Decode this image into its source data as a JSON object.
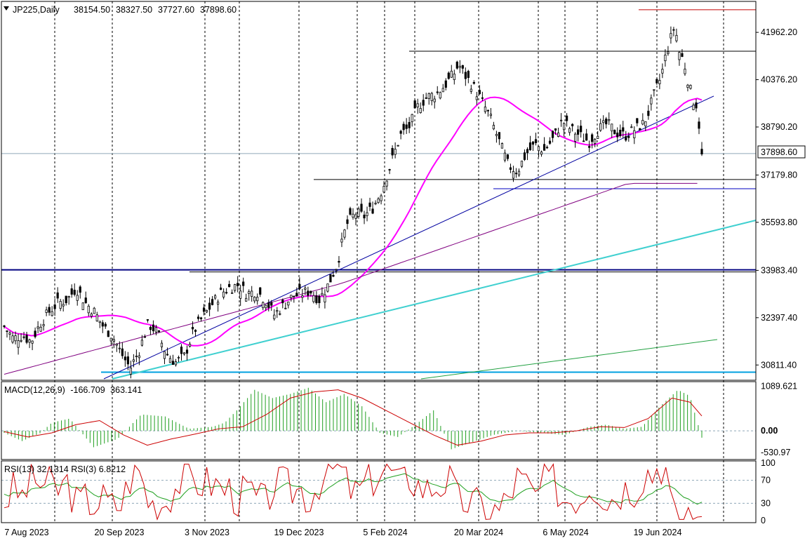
{
  "header": {
    "symbol": "JP225,Daily",
    "open": "38154.50",
    "high": "38327.50",
    "low": "37727.60",
    "close": "37898.60",
    "current_price_label": "37898.60"
  },
  "chart_data": [
    {
      "type": "candlestick",
      "title": "JP225,Daily",
      "x_tick_labels": [
        "7 Aug 2023",
        "20 Sep 2023",
        "3 Nov 2023",
        "19 Dec 2023",
        "5 Feb 2024",
        "20 Mar 2024",
        "6 May 2024",
        "19 Jun 2024"
      ],
      "y_tick_labels": [
        "41962.20",
        "40376.20",
        "38790.20",
        "37179.80",
        "35593.80",
        "33983.40",
        "32397.40",
        "30811.40"
      ],
      "ylim": [
        30300,
        43000
      ],
      "current_price": 37898.6,
      "candle_count": 250,
      "trend_points": [
        [
          0,
          32100
        ],
        [
          4,
          31700
        ],
        [
          8,
          31800
        ],
        [
          12,
          31600
        ],
        [
          16,
          32200
        ],
        [
          20,
          32600
        ],
        [
          24,
          32900
        ],
        [
          28,
          33000
        ],
        [
          32,
          33400
        ],
        [
          36,
          32900
        ],
        [
          40,
          32600
        ],
        [
          44,
          32100
        ],
        [
          48,
          31800
        ],
        [
          52,
          31200
        ],
        [
          56,
          30700
        ],
        [
          60,
          31300
        ],
        [
          64,
          32200
        ],
        [
          68,
          31900
        ],
        [
          72,
          31200
        ],
        [
          76,
          30900
        ],
        [
          80,
          31100
        ],
        [
          84,
          31900
        ],
        [
          88,
          32400
        ],
        [
          92,
          32800
        ],
        [
          96,
          33200
        ],
        [
          100,
          33400
        ],
        [
          104,
          33500
        ],
        [
          108,
          33200
        ],
        [
          112,
          33300
        ],
        [
          116,
          33000
        ],
        [
          120,
          32500
        ],
        [
          124,
          32800
        ],
        [
          128,
          33100
        ],
        [
          132,
          33200
        ],
        [
          136,
          33300
        ],
        [
          140,
          33000
        ],
        [
          144,
          33500
        ],
        [
          148,
          34200
        ],
        [
          152,
          35500
        ],
        [
          156,
          35900
        ],
        [
          160,
          35800
        ],
        [
          164,
          36100
        ],
        [
          168,
          36700
        ],
        [
          172,
          37600
        ],
        [
          176,
          38500
        ],
        [
          180,
          38800
        ],
        [
          184,
          39500
        ],
        [
          188,
          39800
        ],
        [
          192,
          39900
        ],
        [
          196,
          40200
        ],
        [
          200,
          40600
        ],
        [
          202,
          40900
        ],
        [
          204,
          40600
        ],
        [
          208,
          40200
        ],
        [
          212,
          39700
        ],
        [
          216,
          39100
        ],
        [
          220,
          38300
        ],
        [
          224,
          37500
        ],
        [
          228,
          37300
        ],
        [
          232,
          37900
        ],
        [
          236,
          38200
        ],
        [
          240,
          38000
        ],
        [
          244,
          38400
        ],
        [
          248,
          39000
        ],
        [
          252,
          38700
        ],
        [
          256,
          38500
        ],
        [
          260,
          38300
        ],
        [
          264,
          38700
        ],
        [
          268,
          38900
        ],
        [
          272,
          38600
        ],
        [
          276,
          38500
        ],
        [
          280,
          38700
        ],
        [
          284,
          38900
        ],
        [
          286,
          39200
        ],
        [
          288,
          39700
        ],
        [
          290,
          40100
        ],
        [
          292,
          40500
        ],
        [
          294,
          41200
        ],
        [
          296,
          41700
        ],
        [
          298,
          42200
        ],
        [
          300,
          41300
        ],
        [
          302,
          41000
        ],
        [
          304,
          40300
        ],
        [
          306,
          39700
        ],
        [
          308,
          39500
        ],
        [
          310,
          37800
        ]
      ],
      "moving_averages": [
        {
          "color": "#ff00ff",
          "width": 2
        },
        {
          "color": "#800080",
          "width": 1
        },
        {
          "color": "#40e0d0",
          "width": 2
        },
        {
          "color": "#20a040",
          "width": 1
        }
      ],
      "horizontal_levels": [
        {
          "value": 42720,
          "color": "#c00000"
        },
        {
          "value": 41330,
          "color": "#000000"
        },
        {
          "value": 37030,
          "color": "#000000"
        },
        {
          "value": 36720,
          "color": "#0000c0"
        },
        {
          "value": 34000,
          "color": "#000080"
        },
        {
          "value": 33930,
          "color": "#000000"
        },
        {
          "value": 30570,
          "color": "#00a0e0"
        }
      ],
      "colors": {
        "up": "#000000",
        "down": "#000000",
        "line": "#000000",
        "current_line": "#8fa8b8"
      }
    },
    {
      "type": "bar",
      "title": "MACD(12,26,9)",
      "main_value": "-166.709",
      "signal_value": "363.141",
      "y_tick_labels": [
        "1089.621",
        "0.00",
        "-530.97"
      ],
      "ylim": [
        -700,
        1200
      ],
      "histogram_color": "#22a022",
      "signal_color": "#cc0000",
      "histogram_points": [
        [
          0,
          -50
        ],
        [
          15,
          -250
        ],
        [
          30,
          -60
        ],
        [
          40,
          200
        ],
        [
          55,
          300
        ],
        [
          75,
          -400
        ],
        [
          95,
          -200
        ],
        [
          115,
          400
        ],
        [
          135,
          350
        ],
        [
          155,
          50
        ],
        [
          175,
          100
        ],
        [
          185,
          200
        ],
        [
          195,
          500
        ],
        [
          210,
          1000
        ],
        [
          225,
          800
        ],
        [
          240,
          900
        ],
        [
          255,
          1050
        ],
        [
          270,
          700
        ],
        [
          285,
          900
        ],
        [
          300,
          600
        ],
        [
          315,
          -50
        ],
        [
          330,
          -150
        ],
        [
          345,
          150
        ],
        [
          360,
          500
        ],
        [
          375,
          -450
        ],
        [
          390,
          -300
        ],
        [
          410,
          -100
        ],
        [
          430,
          0
        ],
        [
          450,
          -50
        ],
        [
          470,
          -100
        ],
        [
          490,
          100
        ],
        [
          505,
          150
        ],
        [
          520,
          50
        ],
        [
          535,
          100
        ],
        [
          550,
          600
        ],
        [
          565,
          1000
        ],
        [
          575,
          850
        ],
        [
          585,
          -166.7
        ]
      ],
      "signal_points": [
        [
          0,
          -20
        ],
        [
          20,
          -150
        ],
        [
          40,
          -50
        ],
        [
          60,
          150
        ],
        [
          80,
          250
        ],
        [
          100,
          -100
        ],
        [
          120,
          -350
        ],
        [
          140,
          -200
        ],
        [
          160,
          -80
        ],
        [
          180,
          50
        ],
        [
          200,
          100
        ],
        [
          220,
          400
        ],
        [
          240,
          800
        ],
        [
          260,
          950
        ],
        [
          280,
          1000
        ],
        [
          300,
          800
        ],
        [
          320,
          500
        ],
        [
          340,
          200
        ],
        [
          360,
          -100
        ],
        [
          380,
          -350
        ],
        [
          400,
          -250
        ],
        [
          420,
          -100
        ],
        [
          440,
          -50
        ],
        [
          460,
          -50
        ],
        [
          480,
          0
        ],
        [
          500,
          100
        ],
        [
          520,
          80
        ],
        [
          540,
          300
        ],
        [
          560,
          800
        ],
        [
          575,
          700
        ],
        [
          585,
          363.1
        ]
      ]
    },
    {
      "type": "line",
      "title": "RSI(13) 32.1314 RSI(3) 6.8212",
      "y_tick_labels": [
        "100",
        "70",
        "30",
        "0"
      ],
      "ylim": [
        0,
        100
      ],
      "levels": [
        70,
        30
      ],
      "series": [
        {
          "name": "RSI(13)",
          "color": "#20a020",
          "last": 32.1314
        },
        {
          "name": "RSI(3)",
          "color": "#cc0000",
          "last": 6.8212
        }
      ]
    }
  ]
}
